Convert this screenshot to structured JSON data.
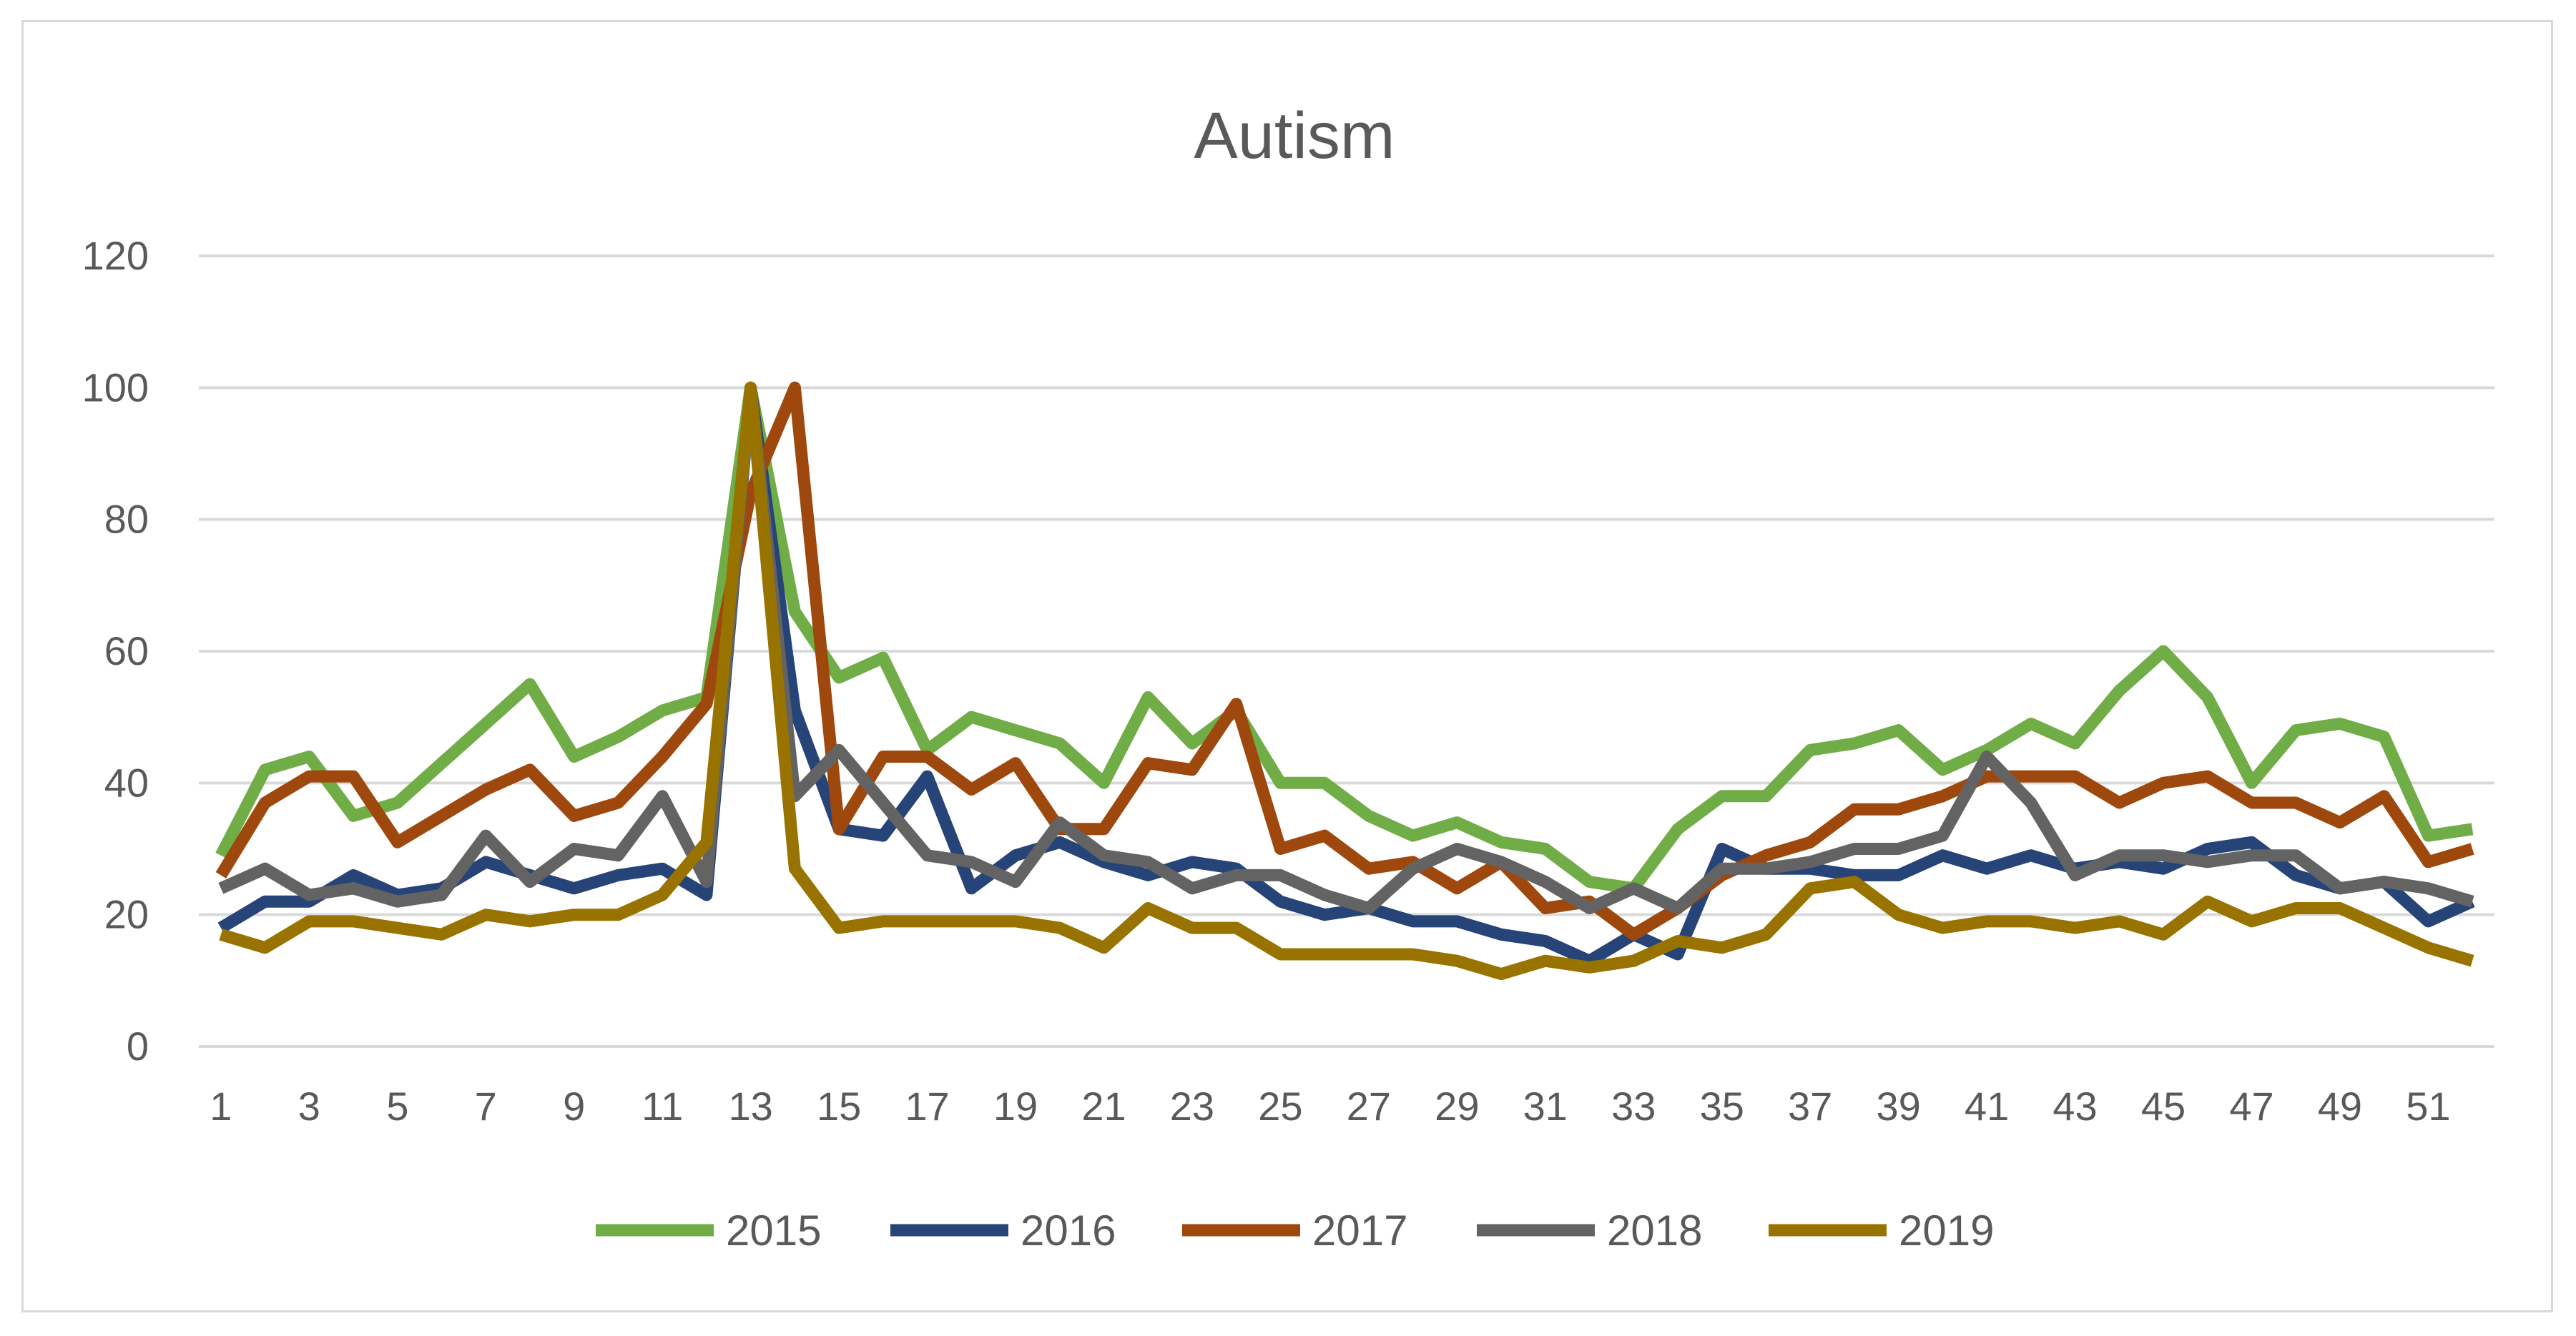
{
  "chart_data": {
    "type": "line",
    "title": "Autism",
    "xlabel": "",
    "ylabel": "",
    "ylim": [
      0,
      120
    ],
    "yticks": [
      0,
      20,
      40,
      60,
      80,
      100,
      120
    ],
    "grid": true,
    "legend_position": "bottom",
    "x": [
      1,
      2,
      3,
      4,
      5,
      6,
      7,
      8,
      9,
      10,
      11,
      12,
      13,
      14,
      15,
      16,
      17,
      18,
      19,
      20,
      21,
      22,
      23,
      24,
      25,
      26,
      27,
      28,
      29,
      30,
      31,
      32,
      33,
      34,
      35,
      36,
      37,
      38,
      39,
      40,
      41,
      42,
      43,
      44,
      45,
      46,
      47,
      48,
      49,
      50,
      51,
      52
    ],
    "x_tick_labels": [
      "1",
      "3",
      "5",
      "7",
      "9",
      "11",
      "13",
      "15",
      "17",
      "19",
      "21",
      "23",
      "25",
      "27",
      "29",
      "31",
      "33",
      "35",
      "37",
      "39",
      "41",
      "43",
      "45",
      "47",
      "49",
      "51"
    ],
    "series": [
      {
        "name": "2015",
        "color": "#70ad47",
        "values": [
          29,
          42,
          44,
          35,
          37,
          43,
          49,
          55,
          44,
          47,
          51,
          53,
          100,
          66,
          56,
          59,
          45,
          50,
          48,
          46,
          40,
          53,
          46,
          51,
          40,
          40,
          35,
          32,
          34,
          31,
          30,
          25,
          24,
          33,
          38,
          38,
          45,
          46,
          48,
          42,
          45,
          49,
          46,
          54,
          60,
          53,
          40,
          48,
          49,
          47,
          32,
          33
        ]
      },
      {
        "name": "2016",
        "color": "#264478",
        "values": [
          18,
          22,
          22,
          26,
          23,
          24,
          28,
          26,
          24,
          26,
          27,
          23,
          100,
          51,
          33,
          32,
          41,
          24,
          29,
          31,
          28,
          26,
          28,
          27,
          22,
          20,
          21,
          19,
          19,
          17,
          16,
          13,
          17,
          14,
          30,
          27,
          27,
          26,
          26,
          29,
          27,
          29,
          27,
          28,
          27,
          30,
          31,
          26,
          24,
          25,
          19,
          22
        ]
      },
      {
        "name": "2017",
        "color": "#9e480e",
        "values": [
          26,
          37,
          41,
          41,
          31,
          35,
          39,
          42,
          35,
          37,
          44,
          52,
          84,
          100,
          33,
          44,
          44,
          39,
          43,
          33,
          33,
          43,
          42,
          52,
          30,
          32,
          27,
          28,
          24,
          28,
          21,
          22,
          17,
          21,
          26,
          29,
          31,
          36,
          36,
          38,
          41,
          41,
          41,
          37,
          40,
          41,
          37,
          37,
          34,
          38,
          28,
          30
        ]
      },
      {
        "name": "2018",
        "color": "#636363",
        "values": [
          24,
          27,
          23,
          24,
          22,
          23,
          32,
          25,
          30,
          29,
          38,
          25,
          100,
          38,
          45,
          37,
          29,
          28,
          25,
          34,
          29,
          28,
          24,
          26,
          26,
          23,
          21,
          27,
          30,
          28,
          25,
          21,
          24,
          21,
          27,
          27,
          28,
          30,
          30,
          32,
          44,
          37,
          26,
          29,
          29,
          28,
          29,
          29,
          24,
          25,
          24,
          22
        ]
      },
      {
        "name": "2019",
        "color": "#997300",
        "values": [
          17,
          15,
          19,
          19,
          18,
          17,
          20,
          19,
          20,
          20,
          23,
          31,
          100,
          27,
          18,
          19,
          19,
          19,
          19,
          18,
          15,
          21,
          18,
          18,
          14,
          14,
          14,
          14,
          13,
          11,
          13,
          12,
          13,
          16,
          15,
          17,
          24,
          25,
          20,
          18,
          19,
          19,
          18,
          19,
          17,
          22,
          19,
          21,
          21,
          18,
          15,
          13
        ]
      }
    ]
  }
}
